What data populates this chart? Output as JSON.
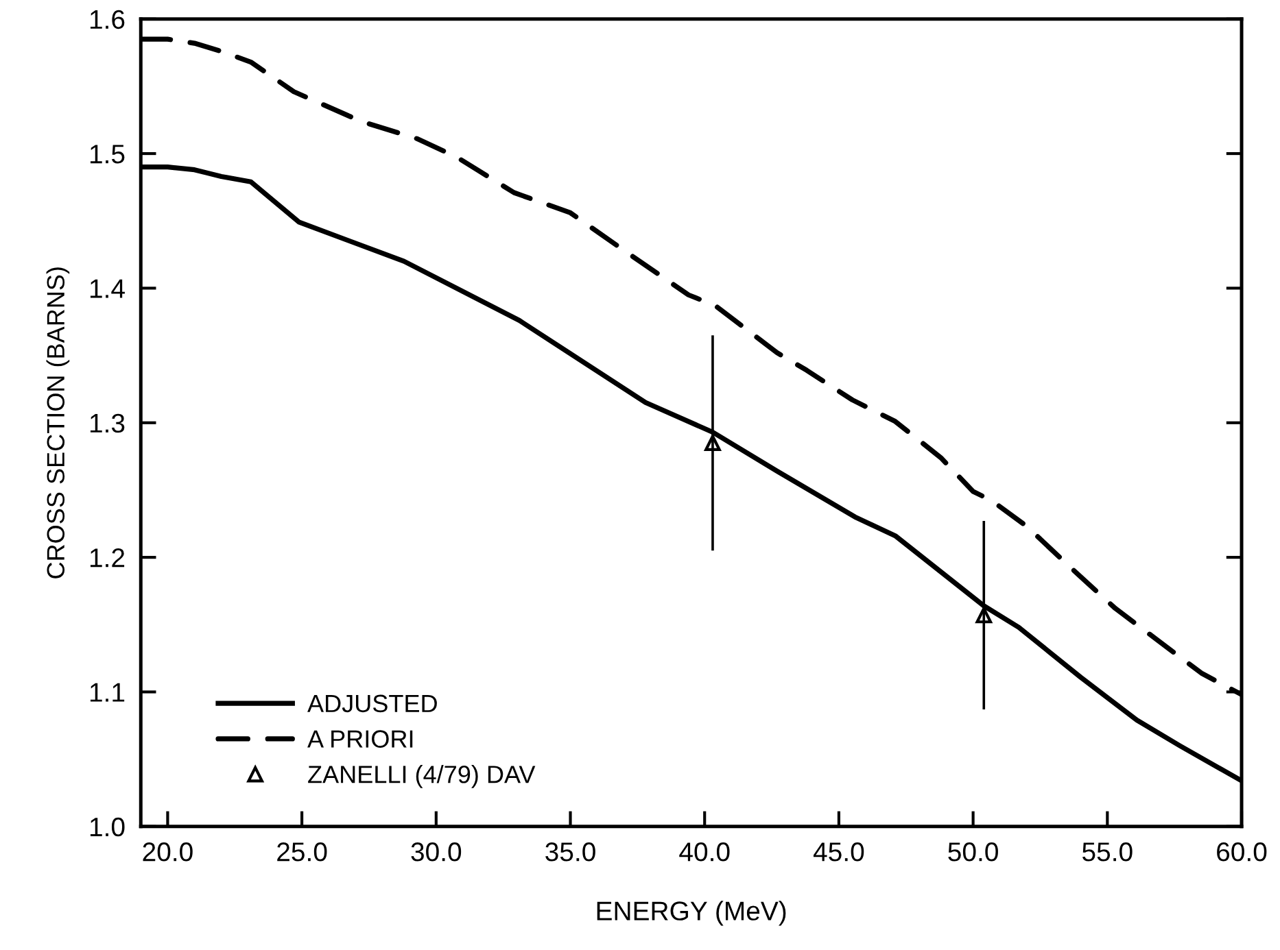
{
  "chart_data": {
    "type": "line",
    "xlabel": "ENERGY (MeV)",
    "ylabel": "CROSS SECTION (BARNS)",
    "xlim": [
      19,
      60
    ],
    "ylim": [
      1.0,
      1.6
    ],
    "xticks": [
      {
        "value": 20,
        "label": "20.0"
      },
      {
        "value": 25,
        "label": "25.0"
      },
      {
        "value": 30,
        "label": "30.0"
      },
      {
        "value": 35,
        "label": "35.0"
      },
      {
        "value": 40,
        "label": "40.0"
      },
      {
        "value": 45,
        "label": "45.0"
      },
      {
        "value": 50,
        "label": "50.0"
      },
      {
        "value": 55,
        "label": "55.0"
      },
      {
        "value": 60,
        "label": "60.0"
      }
    ],
    "yticks": [
      {
        "value": 1.0,
        "label": "1.0"
      },
      1.1,
      1.2,
      1.3,
      1.4,
      1.5,
      1.6
    ],
    "grid": false,
    "legend": "bottom left",
    "series": [
      {
        "name": "ADJUSTED",
        "color": "#000000",
        "line_style": "solid",
        "marker": "none",
        "x": [
          19,
          20,
          21,
          22,
          23.1,
          24.9,
          28.8,
          33.1,
          37.8,
          40.3,
          42.7,
          45.6,
          47.1,
          50.4,
          51.7,
          54.0,
          56.1,
          57.7,
          60
        ],
        "values": [
          1.49,
          1.49,
          1.488,
          1.483,
          1.479,
          1.449,
          1.42,
          1.376,
          1.315,
          1.293,
          1.264,
          1.23,
          1.216,
          1.164,
          1.148,
          1.111,
          1.079,
          1.06,
          1.034
        ]
      },
      {
        "name": "A PRIORI",
        "color": "#000000",
        "line_style": "dashed",
        "marker": "none",
        "x": [
          19,
          20,
          21,
          22,
          23.1,
          24.7,
          27.2,
          29.3,
          30.8,
          32.9,
          35.0,
          37.0,
          39.4,
          40.4,
          42.7,
          43.8,
          45.5,
          47.1,
          48.8,
          50.0,
          50.7,
          52.0,
          53.6,
          55.3,
          56.9,
          58.5,
          60
        ],
        "values": [
          1.585,
          1.585,
          1.582,
          1.576,
          1.568,
          1.546,
          1.524,
          1.511,
          1.497,
          1.471,
          1.456,
          1.428,
          1.395,
          1.387,
          1.352,
          1.339,
          1.317,
          1.301,
          1.274,
          1.249,
          1.242,
          1.223,
          1.193,
          1.162,
          1.138,
          1.114,
          1.098
        ]
      },
      {
        "name": "ZANELLI (4/79) DAV",
        "type": "scatter",
        "color": "#000000",
        "marker": "triangle",
        "x": [
          40.3,
          50.4
        ],
        "values": [
          1.285,
          1.157
        ],
        "errors": [
          0.08,
          0.07
        ]
      }
    ]
  }
}
